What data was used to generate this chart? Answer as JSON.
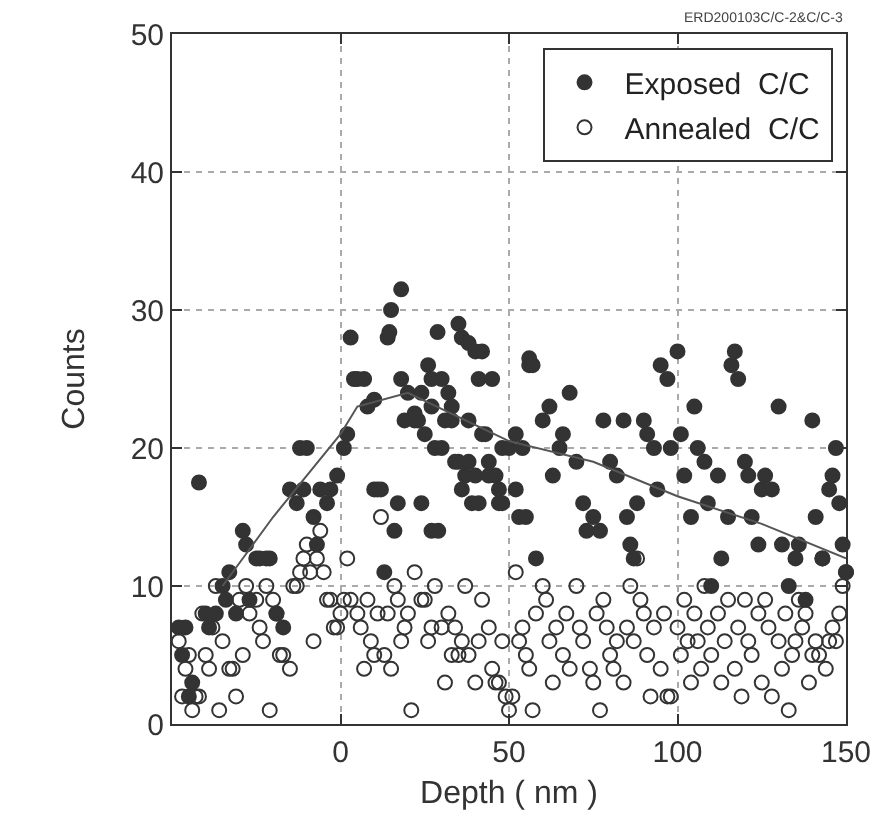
{
  "chart_data": {
    "type": "scatter",
    "xlabel": "Depth ( nm )",
    "ylabel": "Counts",
    "xlim": [
      -50,
      150
    ],
    "ylim": [
      0,
      50
    ],
    "xticks": [
      0,
      50,
      100,
      150
    ],
    "yticks": [
      0,
      10,
      20,
      30,
      40,
      50
    ],
    "grid": true,
    "legend": "top right",
    "annotations": [
      "ERD200103C/C-2&C/C-3"
    ],
    "series": [
      {
        "name": "Exposed  C/C",
        "marker": "circle",
        "color": "#333333",
        "x": [
          -48,
          -46,
          -47,
          -45,
          -44,
          -42,
          -40,
          -39,
          -37,
          -35,
          -34,
          -33,
          -31,
          -29,
          -28,
          -27,
          -25,
          -24,
          -22,
          -21,
          -19,
          -17,
          -15,
          -13,
          -12,
          -11,
          -10,
          -8,
          -7,
          -6,
          -4,
          -3,
          -1,
          1,
          2,
          3,
          4,
          5,
          7,
          8,
          10,
          11,
          12,
          13,
          14,
          15,
          16,
          17,
          18,
          19,
          20,
          22,
          23,
          24,
          26,
          27,
          28,
          30,
          31,
          32,
          33,
          34,
          35,
          36,
          37,
          38,
          40,
          41,
          42,
          43,
          44,
          46,
          47,
          48,
          18,
          14.5,
          28.8,
          38,
          42,
          56,
          27,
          45,
          10,
          22,
          25,
          30,
          33,
          35,
          38,
          40,
          44,
          47,
          48,
          50,
          52,
          53,
          55,
          24,
          27,
          29,
          36,
          39,
          41,
          52,
          54,
          56,
          57,
          58,
          60,
          62,
          63,
          65,
          66,
          68,
          70,
          72,
          73,
          75,
          77,
          78,
          80,
          82,
          84,
          85,
          86,
          87,
          88,
          90,
          91,
          93,
          94,
          95,
          97,
          98,
          100,
          101,
          102,
          104,
          105,
          106,
          108,
          109,
          110,
          112,
          113,
          115,
          116,
          117,
          118,
          120,
          121,
          122,
          124,
          125,
          126,
          128,
          130,
          131,
          133,
          135,
          136,
          138,
          140,
          141,
          143,
          145,
          146,
          147,
          148,
          149,
          150
        ],
        "values": [
          7,
          7,
          5,
          2,
          3,
          17.5,
          8,
          7,
          8,
          10,
          9,
          11,
          8,
          14,
          13,
          9,
          12,
          12,
          12,
          12,
          8,
          7,
          17,
          16,
          20,
          17,
          20,
          15,
          13,
          17,
          16,
          17,
          18,
          20,
          21,
          28,
          25,
          25,
          25,
          23,
          17,
          17,
          17,
          11,
          28,
          30,
          14,
          16,
          25,
          22,
          24,
          22,
          22,
          24,
          26,
          23,
          20,
          25,
          22,
          24,
          23,
          19,
          29,
          28,
          18,
          22,
          27,
          25,
          21,
          21,
          18,
          18,
          16,
          20,
          31.5,
          28.4,
          28.4,
          27.6,
          27,
          26.5,
          25,
          25,
          23.5,
          22.5,
          21,
          20,
          22,
          19,
          19,
          18,
          19,
          17,
          16,
          20,
          17,
          15,
          15,
          16,
          14,
          14,
          17,
          16,
          16,
          21,
          20,
          26,
          26,
          12,
          22,
          23,
          18,
          20,
          21,
          24,
          19,
          16,
          14,
          15,
          14,
          22,
          19,
          18,
          22,
          15,
          13,
          12,
          16,
          22,
          21,
          20,
          17,
          26,
          25,
          20,
          27,
          21,
          18,
          15,
          23,
          20,
          19,
          16,
          10,
          18,
          12,
          15,
          26,
          27,
          25,
          19,
          18,
          15,
          13,
          17,
          18,
          17,
          23,
          13,
          10,
          12,
          13,
          9,
          22,
          15,
          12,
          17,
          18,
          20,
          16,
          13,
          11
        ]
      },
      {
        "name": "Annealed  C/C",
        "marker": "open circle",
        "color": "#333333",
        "x": [
          -48,
          -47,
          -46,
          -45,
          -44,
          -43,
          -42,
          -41,
          -40,
          -39,
          -38,
          -37,
          -36,
          -35,
          -33,
          -32,
          -31,
          -30,
          -29,
          -28,
          -27,
          -25,
          -24,
          -23,
          -22,
          -21,
          -20,
          -19,
          -18,
          -17,
          -15,
          -14,
          -13,
          -12,
          -11,
          -10,
          -9,
          -8,
          -7,
          -6,
          -5,
          -4,
          -3,
          -2,
          -1,
          0,
          1,
          2,
          3,
          5,
          6,
          7,
          8,
          9,
          10,
          11,
          12,
          13,
          14,
          15,
          16,
          17,
          18,
          19,
          20,
          21,
          22,
          24,
          25,
          26,
          27,
          28,
          30,
          31,
          32,
          33,
          34,
          35,
          36,
          37,
          38,
          40,
          41,
          42,
          44,
          45,
          46,
          47,
          48,
          49,
          50,
          51,
          52,
          53,
          54,
          55,
          56,
          57,
          58,
          60,
          61,
          62,
          63,
          64,
          66,
          67,
          68,
          70,
          71,
          72,
          74,
          75,
          76,
          77,
          78,
          79,
          80,
          81,
          82,
          84,
          85,
          86,
          87,
          88,
          89,
          90,
          91,
          92,
          93,
          95,
          96,
          97,
          98,
          100,
          101,
          102,
          103,
          104,
          105,
          106,
          107,
          108,
          109,
          110,
          112,
          113,
          114,
          115,
          117,
          118,
          119,
          120,
          121,
          122,
          124,
          125,
          126,
          127,
          128,
          130,
          131,
          132,
          133,
          134,
          135,
          136,
          137,
          138,
          139,
          140,
          141,
          142,
          143,
          144,
          145,
          146,
          147,
          148,
          149,
          150
        ],
        "values": [
          6,
          2,
          4,
          5,
          1,
          2,
          2,
          8,
          5,
          4,
          7,
          10,
          1,
          6,
          4,
          4,
          2,
          9,
          5,
          10,
          8,
          9,
          7,
          6,
          10,
          1,
          9,
          8,
          5,
          5,
          4,
          10,
          10,
          11,
          12,
          13,
          11,
          6,
          12,
          14,
          11,
          9,
          9,
          7,
          7,
          8,
          9,
          12,
          9,
          8,
          7,
          4,
          9,
          6,
          5,
          8,
          15,
          5,
          8,
          4,
          10,
          9,
          6,
          7,
          8,
          1,
          11,
          9,
          9,
          6,
          7,
          10,
          7,
          3,
          8,
          5,
          7,
          5,
          6,
          10,
          5,
          3,
          6,
          9,
          7,
          4,
          3,
          3,
          6,
          2,
          1,
          2,
          11,
          6,
          7,
          5,
          4,
          1,
          8,
          10,
          9,
          6,
          3,
          7,
          5,
          8,
          4,
          10,
          7,
          6,
          4,
          3,
          8,
          1,
          9,
          7,
          5,
          4,
          6,
          3,
          7,
          10,
          6,
          12,
          9,
          8,
          5,
          2,
          7,
          4,
          8,
          2,
          2,
          7,
          5,
          9,
          6,
          3,
          8,
          6,
          4,
          10,
          7,
          5,
          8,
          3,
          6,
          9,
          4,
          7,
          2,
          9,
          6,
          5,
          8,
          3,
          9,
          7,
          2,
          6,
          4,
          8,
          1,
          5,
          6,
          9,
          7,
          8,
          3,
          5,
          6,
          5,
          12,
          4,
          6,
          7,
          6,
          8,
          10,
          11
        ]
      },
      {
        "type": "line",
        "color": "#555555",
        "x": [
          -35,
          -20,
          0,
          5,
          20,
          50,
          75,
          100,
          125,
          150
        ],
        "values": [
          10,
          15,
          21,
          23,
          24,
          20.5,
          19,
          16.5,
          14.5,
          12
        ]
      }
    ]
  }
}
